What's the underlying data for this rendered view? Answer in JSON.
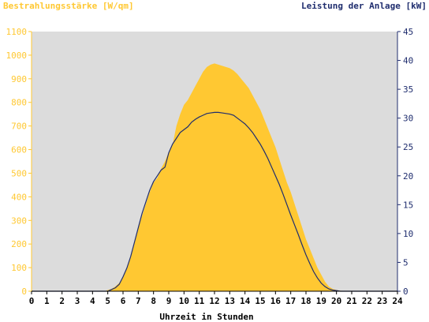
{
  "chart_data": {
    "type": "area",
    "left_axis_title": "Bestrahlungsstärke [W/qm]",
    "right_axis_title": "Leistung der Anlage [kW]",
    "xlabel": "Uhrzeit in Stunden",
    "xlim": [
      0,
      24
    ],
    "ylim_left": [
      0,
      1100
    ],
    "ylim_right": [
      0,
      45
    ],
    "x_ticks": [
      "0",
      "1",
      "2",
      "3",
      "4",
      "5",
      "6",
      "7",
      "8",
      "9",
      "10",
      "11",
      "12",
      "13",
      "14",
      "15",
      "16",
      "17",
      "18",
      "19",
      "20",
      "21",
      "22",
      "23",
      "24"
    ],
    "y_left_ticks": [
      "0",
      "100",
      "200",
      "300",
      "400",
      "500",
      "600",
      "700",
      "800",
      "900",
      "1000",
      "1100"
    ],
    "y_right_ticks": [
      "0",
      "5",
      "10",
      "15",
      "20",
      "25",
      "30",
      "35",
      "40",
      "45"
    ],
    "grid": false,
    "colors": {
      "irradiance": "#ffc832",
      "power": "#1f2d6e",
      "plot_bg": "#dcdcdc"
    },
    "series": [
      {
        "axis": "left",
        "style": "filled-area",
        "x": [
          0,
          4.8,
          5,
          5.25,
          5.5,
          5.75,
          6,
          6.25,
          6.5,
          6.75,
          7,
          7.25,
          7.5,
          7.75,
          8,
          8.25,
          8.5,
          8.75,
          9,
          9.25,
          9.5,
          9.75,
          10,
          10.25,
          10.5,
          10.75,
          11,
          11.25,
          11.5,
          11.75,
          12,
          12.25,
          12.5,
          12.75,
          13,
          13.25,
          13.5,
          13.75,
          14,
          14.25,
          14.5,
          14.75,
          15,
          15.25,
          15.5,
          15.75,
          16,
          16.25,
          16.5,
          16.75,
          17,
          17.25,
          17.5,
          17.75,
          18,
          18.25,
          18.5,
          18.75,
          19,
          19.25,
          19.5,
          19.75,
          20,
          20.25,
          21,
          24
        ],
        "values": [
          0,
          0,
          5,
          10,
          20,
          35,
          60,
          100,
          150,
          210,
          270,
          320,
          370,
          420,
          460,
          480,
          520,
          550,
          590,
          620,
          700,
          750,
          790,
          810,
          840,
          870,
          900,
          930,
          950,
          960,
          965,
          960,
          955,
          950,
          945,
          935,
          920,
          900,
          880,
          860,
          830,
          800,
          770,
          730,
          690,
          650,
          610,
          560,
          510,
          460,
          420,
          370,
          320,
          270,
          220,
          180,
          140,
          100,
          70,
          40,
          20,
          10,
          5,
          2,
          0,
          0
        ]
      },
      {
        "axis": "right",
        "style": "line",
        "x": [
          0,
          5,
          5.25,
          5.5,
          5.75,
          6,
          6.25,
          6.5,
          6.75,
          7,
          7.25,
          7.5,
          7.75,
          8,
          8.25,
          8.5,
          8.75,
          9,
          9.25,
          9.5,
          9.75,
          10,
          10.25,
          10.5,
          10.75,
          11,
          11.25,
          11.5,
          11.75,
          12,
          12.25,
          12.5,
          12.75,
          13,
          13.25,
          13.5,
          13.75,
          14,
          14.25,
          14.5,
          14.75,
          15,
          15.25,
          15.5,
          15.75,
          16,
          16.25,
          16.5,
          16.75,
          17,
          17.25,
          17.5,
          17.75,
          18,
          18.25,
          18.5,
          18.75,
          19,
          19.25,
          19.5,
          19.75,
          20,
          20.25,
          20.5,
          24
        ],
        "values": [
          0,
          0,
          0.3,
          0.6,
          1.2,
          2.5,
          4,
          6,
          8.5,
          11,
          13.5,
          15.5,
          17.5,
          19,
          20,
          21,
          21.5,
          24,
          25.5,
          26.5,
          27.5,
          28,
          28.5,
          29.3,
          29.8,
          30.2,
          30.5,
          30.8,
          30.9,
          31,
          31,
          30.9,
          30.8,
          30.7,
          30.5,
          30,
          29.5,
          29,
          28.3,
          27.5,
          26.5,
          25.5,
          24.3,
          23,
          21.5,
          20,
          18.5,
          16.8,
          15,
          13.2,
          11.5,
          9.8,
          8,
          6.3,
          4.8,
          3.4,
          2.3,
          1.4,
          0.8,
          0.4,
          0.2,
          0.1,
          0,
          0,
          0
        ]
      }
    ]
  }
}
